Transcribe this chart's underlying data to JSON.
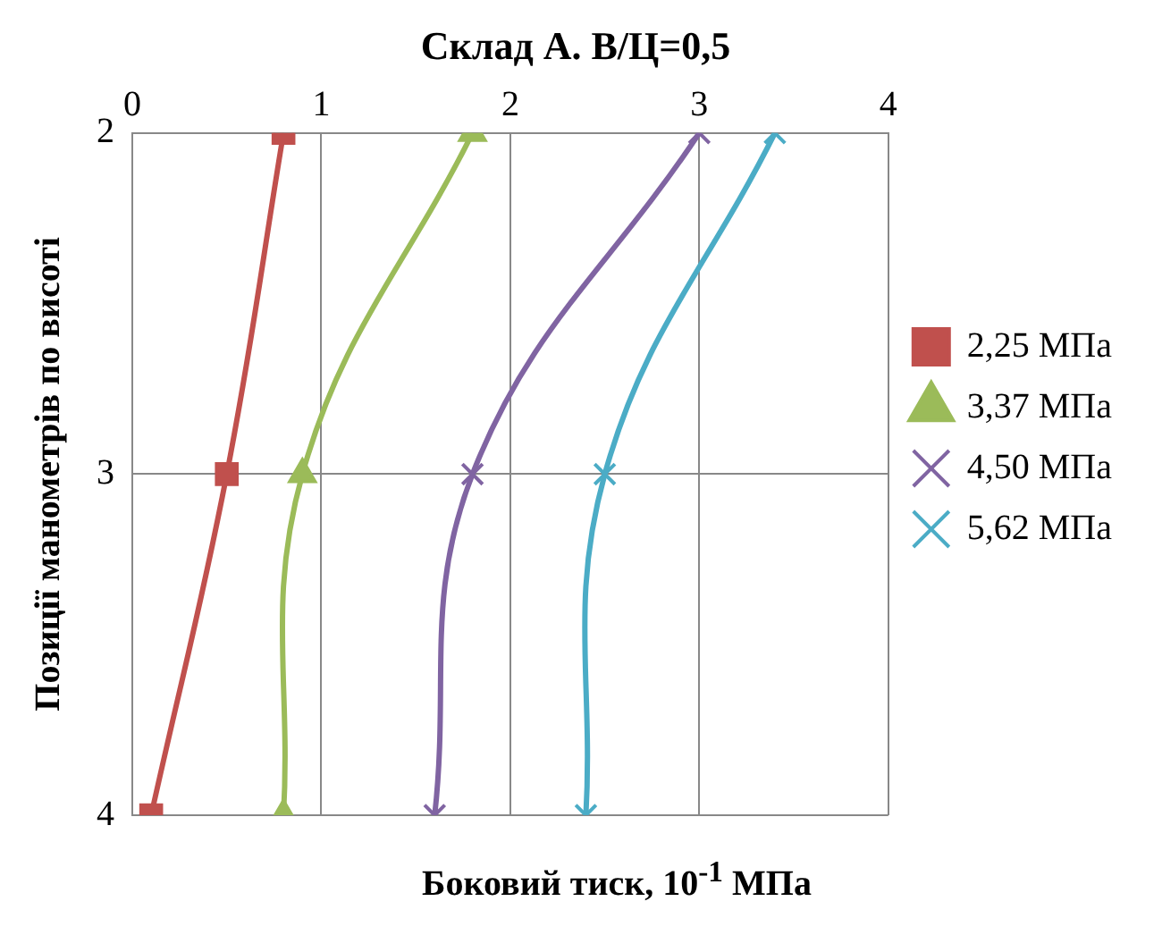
{
  "chart_data": {
    "type": "line",
    "title": "Склад А. В/Ц=0,5",
    "xlabel": "Боковий тиск,  10$^{-1}$ МПа",
    "ylabel": "Позиції манометрів по висоті",
    "xlim": [
      0,
      4
    ],
    "xticks": [
      0,
      1,
      2,
      3,
      4
    ],
    "ylim": [
      4,
      2
    ],
    "yticks": [
      2,
      3,
      4
    ],
    "grid": true,
    "legend": "right",
    "series": [
      {
        "name": "2,25 МПа",
        "color": "#c0504d",
        "marker": "square",
        "x": [
          0.8,
          0.5,
          0.1
        ],
        "values": [
          2,
          3,
          4
        ]
      },
      {
        "name": "3,37 МПа",
        "color": "#9bbb59",
        "marker": "triangle",
        "x": [
          1.8,
          0.9,
          0.8
        ],
        "values": [
          2,
          3,
          4
        ]
      },
      {
        "name": "4,50 МПа",
        "color": "#8064a2",
        "marker": "cross",
        "x": [
          3.0,
          1.8,
          1.6
        ],
        "values": [
          2,
          3,
          4
        ]
      },
      {
        "name": "5,62 МПа",
        "color": "#4bacc6",
        "marker": "cross",
        "x": [
          3.4,
          2.5,
          2.4
        ],
        "values": [
          2,
          3,
          4
        ]
      }
    ]
  }
}
